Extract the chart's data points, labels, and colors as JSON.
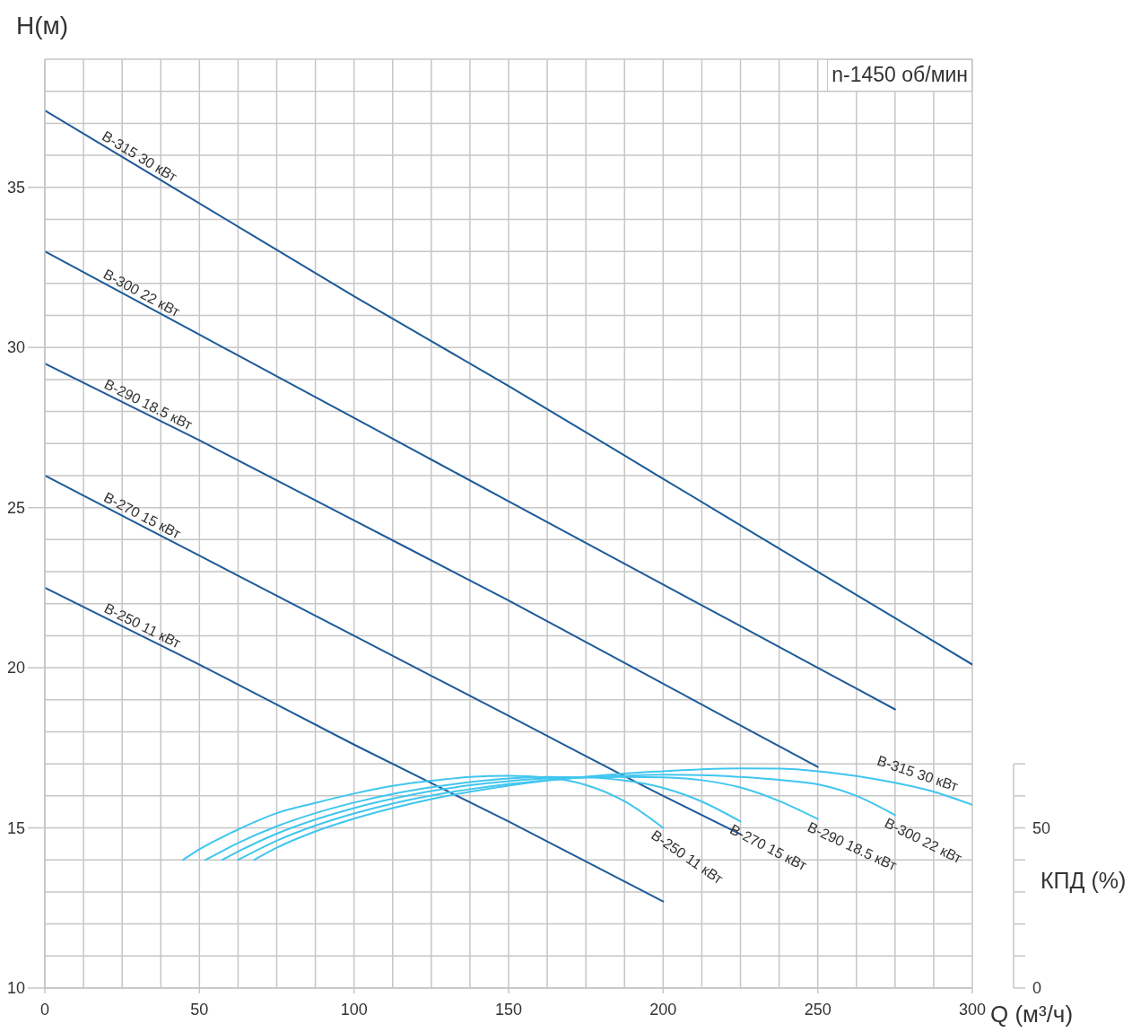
{
  "chart_data": {
    "type": "line",
    "xlabel": "Q (м³/ч)",
    "ylabel": "H(м)",
    "y2label": "КПД (%)",
    "annotations": [
      "n-1450 об/мин"
    ],
    "xlim": [
      0,
      300
    ],
    "xticks": [
      0,
      {
        "value": 12.5,
        "label": null
      },
      {
        "value": 25,
        "label": null
      },
      {
        "value": 37.5,
        "label": null
      },
      50,
      {
        "value": 62.5,
        "label": null
      },
      {
        "value": 75,
        "label": null
      },
      {
        "value": 87.5,
        "label": null
      },
      100,
      {
        "value": 112.5,
        "label": null
      },
      {
        "value": 125,
        "label": null
      },
      {
        "value": 137.5,
        "label": null
      },
      150,
      {
        "value": 162.5,
        "label": null
      },
      {
        "value": 175,
        "label": null
      },
      {
        "value": 187.5,
        "label": null
      },
      200,
      {
        "value": 212.5,
        "label": null
      },
      {
        "value": 225,
        "label": null
      },
      {
        "value": 237.5,
        "label": null
      },
      250,
      {
        "value": 262.5,
        "label": null
      },
      {
        "value": 275,
        "label": null
      },
      {
        "value": 287.5,
        "label": null
      },
      300
    ],
    "ylim": [
      10,
      39
    ],
    "yticks": [
      10,
      {
        "value": 11,
        "label": null
      },
      {
        "value": 12,
        "label": null
      },
      {
        "value": 13,
        "label": null
      },
      {
        "value": 14,
        "label": null
      },
      15,
      {
        "value": 16,
        "label": null
      },
      {
        "value": 17,
        "label": null
      },
      {
        "value": 18,
        "label": null
      },
      {
        "value": 19,
        "label": null
      },
      20,
      {
        "value": 21,
        "label": null
      },
      {
        "value": 22,
        "label": null
      },
      {
        "value": 23,
        "label": null
      },
      {
        "value": 24,
        "label": null
      },
      25,
      {
        "value": 26,
        "label": null
      },
      {
        "value": 27,
        "label": null
      },
      {
        "value": 28,
        "label": null
      },
      {
        "value": 29,
        "label": null
      },
      30,
      {
        "value": 31,
        "label": null
      },
      {
        "value": 32,
        "label": null
      },
      {
        "value": 33,
        "label": null
      },
      {
        "value": 34,
        "label": null
      },
      35,
      {
        "value": 36,
        "label": null
      },
      {
        "value": 37,
        "label": null
      },
      {
        "value": 38,
        "label": null
      },
      {
        "value": 39,
        "label": null
      }
    ],
    "y2lim": [
      0,
      290
    ],
    "y2ticks": [
      0,
      {
        "value": 10,
        "label": null
      },
      {
        "value": 20,
        "label": null
      },
      {
        "value": 30,
        "label": null
      },
      {
        "value": 40,
        "label": null
      },
      50,
      {
        "value": 60,
        "label": null
      },
      {
        "value": 70,
        "label": null
      }
    ],
    "grid": true,
    "series": [
      {
        "name": "B-315 30 кВт",
        "color": "#1d5b98",
        "x": [
          0,
          50,
          100,
          150,
          200,
          250,
          300
        ],
        "values": [
          37.4,
          34.5,
          31.6,
          28.8,
          25.9,
          23.0,
          20.1
        ]
      },
      {
        "name": "B-300 22 кВт",
        "color": "#1d5b98",
        "x": [
          0,
          50,
          100,
          150,
          200,
          250,
          275
        ],
        "values": [
          33.0,
          30.4,
          27.8,
          25.2,
          22.6,
          20.0,
          18.7
        ]
      },
      {
        "name": "B-290 18.5 кВт",
        "color": "#1d5b98",
        "x": [
          0,
          50,
          100,
          150,
          200,
          250
        ],
        "values": [
          29.5,
          27.1,
          24.6,
          22.1,
          19.5,
          16.9
        ]
      },
      {
        "name": "B-270 15 кВт",
        "color": "#1d5b98",
        "x": [
          0,
          50,
          100,
          150,
          200,
          225
        ],
        "values": [
          26.0,
          23.5,
          21.0,
          18.5,
          16.0,
          14.8
        ]
      },
      {
        "name": "B-250 11 кВт",
        "color": "#1d5b98",
        "x": [
          0,
          50,
          100,
          150,
          200
        ],
        "values": [
          22.5,
          20.1,
          17.6,
          15.2,
          12.7
        ]
      },
      {
        "name": "B-315 30 кВт",
        "color": "#40c6ef",
        "axis": "y2",
        "x": [
          67.7,
          75,
          87.5,
          100,
          112.5,
          125,
          137.5,
          150,
          162.5,
          175,
          187.5,
          200,
          212.5,
          225,
          237.5,
          250,
          262.5,
          275,
          287.5,
          300
        ],
        "values": [
          40,
          43.8,
          48.9,
          52.9,
          56.2,
          59.0,
          61.3,
          63.2,
          64.8,
          66.0,
          67.0,
          67.7,
          68.3,
          68.6,
          68.5,
          67.7,
          66.2,
          64.1,
          61.3,
          57.2
        ]
      },
      {
        "name": "B-300 22 кВт",
        "color": "#40c6ef",
        "axis": "y2",
        "x": [
          62.5,
          75,
          87.5,
          100,
          112.5,
          125,
          137.5,
          150,
          162.5,
          175,
          187.5,
          200,
          212.5,
          225,
          237.5,
          250,
          262.5,
          275
        ],
        "values": [
          40,
          46.0,
          50.7,
          54.5,
          57.6,
          60.1,
          62.1,
          63.7,
          64.9,
          65.8,
          66.3,
          66.6,
          66.5,
          65.9,
          65.0,
          63.6,
          60.0,
          54.0
        ]
      },
      {
        "name": "B-290 18.5 кВт",
        "color": "#40c6ef",
        "axis": "y2",
        "x": [
          57.4,
          62.5,
          75,
          87.5,
          100,
          112.5,
          125,
          137.5,
          150,
          162.5,
          175,
          187.5,
          200,
          212.5,
          225,
          237.5,
          250
        ],
        "values": [
          40,
          42.6,
          48.2,
          52.6,
          56.2,
          59.1,
          61.5,
          63.3,
          64.6,
          65.4,
          65.8,
          65.9,
          65.8,
          64.9,
          62.6,
          58.4,
          52.8
        ]
      },
      {
        "name": "B-270 15 кВт",
        "color": "#40c6ef",
        "axis": "y2",
        "x": [
          52,
          62.5,
          75,
          87.5,
          100,
          112.5,
          125,
          137.5,
          150,
          162.5,
          175,
          187.5,
          200,
          212.5,
          225
        ],
        "values": [
          40,
          45.3,
          50.5,
          54.6,
          57.9,
          60.6,
          62.7,
          64.3,
          65.4,
          65.9,
          65.8,
          64.8,
          62.5,
          58.2,
          52.0
        ]
      },
      {
        "name": "B-250 11 кВт",
        "color": "#40c6ef",
        "axis": "y2",
        "x": [
          44.7,
          50,
          62.5,
          75,
          87.5,
          100,
          112.5,
          125,
          137.5,
          150,
          162.5,
          175,
          187.5,
          200
        ],
        "values": [
          40,
          43.3,
          49.5,
          54.6,
          57.8,
          60.7,
          63.1,
          64.7,
          65.9,
          66.3,
          65.7,
          63.4,
          58.3,
          50.0
        ]
      }
    ]
  }
}
